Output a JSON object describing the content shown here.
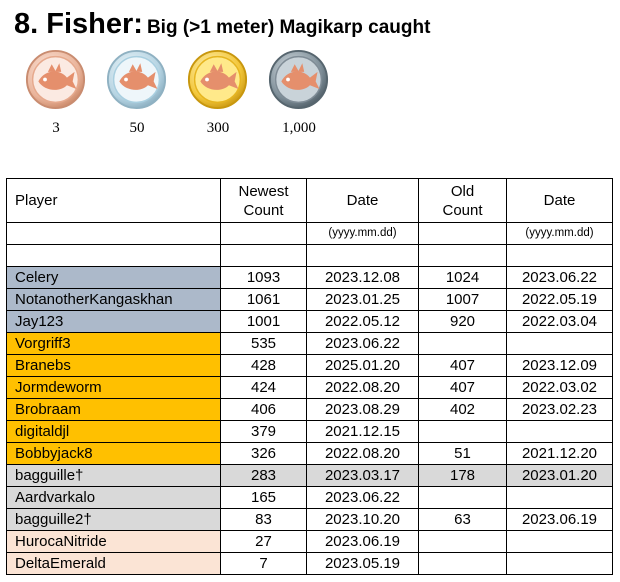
{
  "header": {
    "number_title": "8. Fisher:",
    "subtitle": "Big (>1 meter) Magikarp caught"
  },
  "medals": [
    {
      "name": "bronze",
      "label": "3",
      "color": "#e8a98c"
    },
    {
      "name": "silver",
      "label": "50",
      "color": "#a9cfe0"
    },
    {
      "name": "gold",
      "label": "300",
      "color": "#f1c232"
    },
    {
      "name": "platinum",
      "label": "1,000",
      "color": "#7f8c96"
    }
  ],
  "table": {
    "headers": {
      "player": "Player",
      "newest_count": "Newest Count",
      "date1": "Date",
      "old_count": "Old Count",
      "date2": "Date"
    },
    "date_format_1": "(yyyy.mm.dd)",
    "date_format_2": "(yyyy.mm.dd)",
    "rows": [
      {
        "player": "Celery",
        "newest": "1093",
        "date1": "2023.12.08",
        "old": "1024",
        "date2": "2023.06.22",
        "tier": "silver"
      },
      {
        "player": "NotanotherKangaskhan",
        "newest": "1061",
        "date1": "2023.01.25",
        "old": "1007",
        "date2": "2022.05.19",
        "tier": "silver"
      },
      {
        "player": "Jay123",
        "newest": "1001",
        "date1": "2022.05.12",
        "old": "920",
        "date2": "2022.03.04",
        "tier": "silver"
      },
      {
        "player": "Vorgriff3",
        "newest": "535",
        "date1": "2023.06.22",
        "old": "",
        "date2": "",
        "tier": "gold"
      },
      {
        "player": "Branebs",
        "newest": "428",
        "date1": "2025.01.20",
        "old": "407",
        "date2": "2023.12.09",
        "tier": "gold"
      },
      {
        "player": "Jormdeworm",
        "newest": "424",
        "date1": "2022.08.20",
        "old": "407",
        "date2": "2022.03.02",
        "tier": "gold"
      },
      {
        "player": "Brobraam",
        "newest": "406",
        "date1": "2023.08.29",
        "old": "402",
        "date2": "2023.02.23",
        "tier": "gold"
      },
      {
        "player": "digitaldjl",
        "newest": "379",
        "date1": "2021.12.15",
        "old": "",
        "date2": "",
        "tier": "gold"
      },
      {
        "player": "Bobbyjack8",
        "newest": "326",
        "date1": "2022.08.20",
        "old": "51",
        "date2": "2021.12.20",
        "tier": "gold"
      },
      {
        "player": "bagguille†",
        "newest": "283",
        "date1": "2023.03.17",
        "old": "178",
        "date2": "2023.01.20",
        "tier": "greyrow"
      },
      {
        "player": "Aardvarkalo",
        "newest": "165",
        "date1": "2023.06.22",
        "old": "",
        "date2": "",
        "tier": "grey"
      },
      {
        "player": "bagguille2†",
        "newest": "83",
        "date1": "2023.10.20",
        "old": "63",
        "date2": "2023.06.19",
        "tier": "grey"
      },
      {
        "player": "HurocaNitride",
        "newest": "27",
        "date1": "2023.06.19",
        "old": "",
        "date2": "",
        "tier": "bronze"
      },
      {
        "player": "DeltaEmerald",
        "newest": "7",
        "date1": "2023.05.19",
        "old": "",
        "date2": "",
        "tier": "bronze"
      }
    ]
  }
}
